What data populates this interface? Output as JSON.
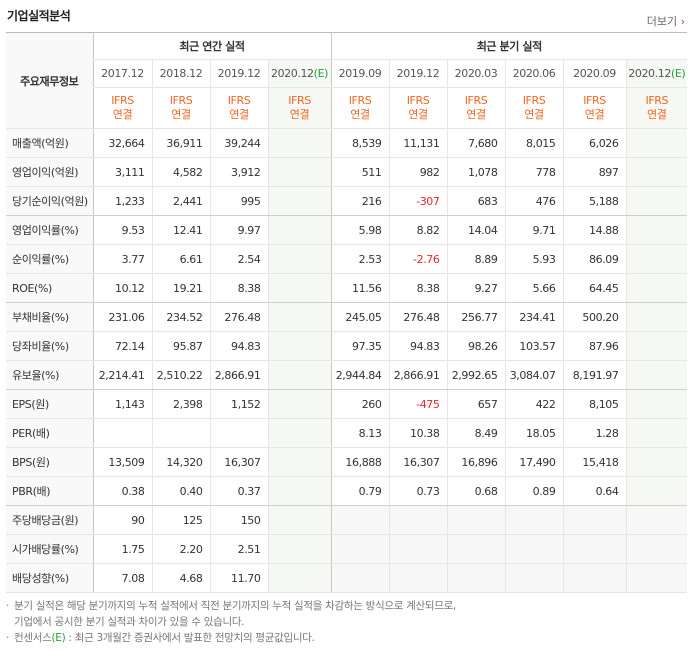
{
  "header": {
    "title": "기업실적분석",
    "more": "더보기"
  },
  "table": {
    "corner": "주요재무정보",
    "groups": [
      {
        "label": "최근 연간 실적",
        "periods": [
          {
            "date": "2017.12",
            "std": "IFRS",
            "scope": "연결"
          },
          {
            "date": "2018.12",
            "std": "IFRS",
            "scope": "연결"
          },
          {
            "date": "2019.12",
            "std": "IFRS",
            "scope": "연결"
          },
          {
            "date": "2020.12",
            "mark": "(E)",
            "std": "IFRS",
            "scope": "연결"
          }
        ]
      },
      {
        "label": "최근 분기 실적",
        "periods": [
          {
            "date": "2019.09",
            "std": "IFRS",
            "scope": "연결"
          },
          {
            "date": "2019.12",
            "std": "IFRS",
            "scope": "연결"
          },
          {
            "date": "2020.03",
            "std": "IFRS",
            "scope": "연결"
          },
          {
            "date": "2020.06",
            "std": "IFRS",
            "scope": "연결"
          },
          {
            "date": "2020.09",
            "std": "IFRS",
            "scope": "연결"
          },
          {
            "date": "2020.12",
            "mark": "(E)",
            "std": "IFRS",
            "scope": "연결"
          }
        ]
      }
    ],
    "rows": [
      {
        "label": "매출액(억원)",
        "values": [
          [
            "32,664",
            "36,911",
            "39,244",
            null
          ],
          [
            "8,539",
            "11,131",
            "7,680",
            "8,015",
            "6,026",
            null
          ]
        ]
      },
      {
        "label": "영업이익(억원)",
        "values": [
          [
            "3,111",
            "4,582",
            "3,912",
            null
          ],
          [
            "511",
            "982",
            "1,078",
            "778",
            "897",
            null
          ]
        ]
      },
      {
        "label": "당기순이익(억원)",
        "values": [
          [
            "1,233",
            "2,441",
            "995",
            null
          ],
          [
            "216",
            "-307",
            "683",
            "476",
            "5,188",
            null
          ]
        ]
      },
      {
        "label": "영업이익률(%)",
        "values": [
          [
            "9.53",
            "12.41",
            "9.97",
            null
          ],
          [
            "5.98",
            "8.82",
            "14.04",
            "9.71",
            "14.88",
            null
          ]
        ]
      },
      {
        "label": "순이익률(%)",
        "values": [
          [
            "3.77",
            "6.61",
            "2.54",
            null
          ],
          [
            "2.53",
            "-2.76",
            "8.89",
            "5.93",
            "86.09",
            null
          ]
        ]
      },
      {
        "label": "ROE(%)",
        "values": [
          [
            "10.12",
            "19.21",
            "8.38",
            null
          ],
          [
            "11.56",
            "8.38",
            "9.27",
            "5.66",
            "64.45",
            null
          ]
        ]
      },
      {
        "label": "부채비율(%)",
        "values": [
          [
            "231.06",
            "234.52",
            "276.48",
            null
          ],
          [
            "245.05",
            "276.48",
            "256.77",
            "234.41",
            "500.20",
            null
          ]
        ]
      },
      {
        "label": "당좌비율(%)",
        "values": [
          [
            "72.14",
            "95.87",
            "94.83",
            null
          ],
          [
            "97.35",
            "94.83",
            "98.26",
            "103.57",
            "87.96",
            null
          ]
        ]
      },
      {
        "label": "유보율(%)",
        "values": [
          [
            "2,214.41",
            "2,510.22",
            "2,866.91",
            null
          ],
          [
            "2,944.84",
            "2,866.91",
            "2,992.65",
            "3,084.07",
            "8,191.97",
            null
          ]
        ]
      },
      {
        "label": "EPS(원)",
        "values": [
          [
            "1,143",
            "2,398",
            "1,152",
            null
          ],
          [
            "260",
            "-475",
            "657",
            "422",
            "8,105",
            null
          ]
        ]
      },
      {
        "label": "PER(배)",
        "values": [
          [
            null,
            null,
            null,
            null
          ],
          [
            "8.13",
            "10.38",
            "8.49",
            "18.05",
            "1.28",
            null
          ]
        ]
      },
      {
        "label": "BPS(원)",
        "values": [
          [
            "13,509",
            "14,320",
            "16,307",
            null
          ],
          [
            "16,888",
            "16,307",
            "16,896",
            "17,490",
            "15,418",
            null
          ]
        ]
      },
      {
        "label": "PBR(배)",
        "values": [
          [
            "0.38",
            "0.40",
            "0.37",
            null
          ],
          [
            "0.79",
            "0.73",
            "0.68",
            "0.89",
            "0.64",
            null
          ]
        ]
      },
      {
        "label": "주당배당금(원)",
        "values": [
          [
            "90",
            "125",
            "150",
            null
          ],
          [
            null,
            null,
            null,
            null,
            null,
            null
          ]
        ]
      },
      {
        "label": "시가배당률(%)",
        "values": [
          [
            "1.75",
            "2.20",
            "2.51",
            null
          ],
          [
            null,
            null,
            null,
            null,
            null,
            null
          ]
        ]
      },
      {
        "label": "배당성향(%)",
        "values": [
          [
            "7.08",
            "4.68",
            "11.70",
            null
          ],
          [
            null,
            null,
            null,
            null,
            null,
            null
          ]
        ]
      }
    ]
  },
  "notes": [
    {
      "lines": [
        "분기 실적은 해당 분기까지의 누적 실적에서 직전 분기까지의 누적 실적을 차감하는 방식으로 계산되므로,",
        "기업에서 공시한 분기 실적과 차이가 있을 수 있습니다."
      ]
    },
    {
      "before": "컨센서스",
      "mark": "(E)",
      "after": " : 최근 3개월간 증권사에서 발표한 전망치의 평균값입니다."
    }
  ]
}
